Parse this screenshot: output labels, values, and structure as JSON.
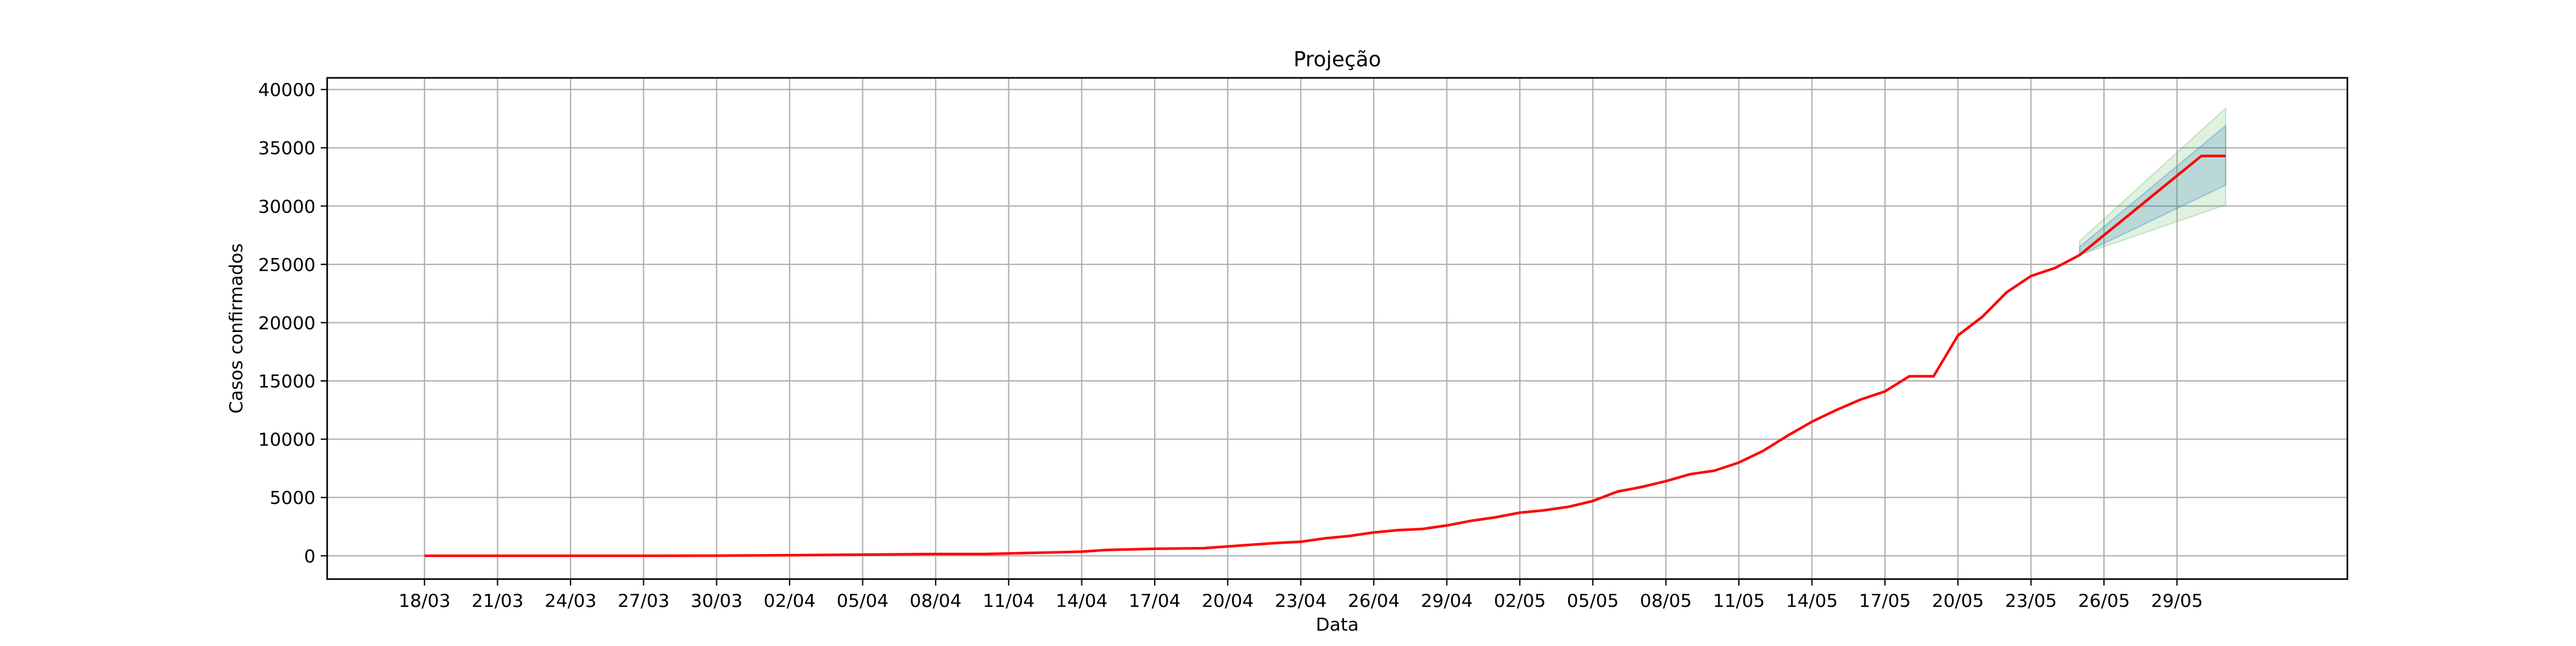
{
  "chart_data": {
    "type": "line",
    "title": "Projeção",
    "xlabel": "Data",
    "ylabel": "Casos confirmados",
    "ylim": [
      -2000,
      41000
    ],
    "yticks": [
      0,
      5000,
      10000,
      15000,
      20000,
      25000,
      30000,
      35000,
      40000
    ],
    "grid": true,
    "x_range": [
      "2020-03-14",
      "2020-06-05"
    ],
    "xtick_labels": [
      "18/03",
      "21/03",
      "24/03",
      "27/03",
      "30/03",
      "02/04",
      "05/04",
      "08/04",
      "11/04",
      "14/04",
      "17/04",
      "20/04",
      "23/04",
      "26/04",
      "29/04",
      "02/05",
      "05/05",
      "08/05",
      "11/05",
      "14/05",
      "17/05",
      "20/05",
      "23/05",
      "26/05",
      "29/05"
    ],
    "xtick_dates": [
      "2020-03-18",
      "2020-03-21",
      "2020-03-24",
      "2020-03-27",
      "2020-03-30",
      "2020-04-02",
      "2020-04-05",
      "2020-04-08",
      "2020-04-11",
      "2020-04-14",
      "2020-04-17",
      "2020-04-20",
      "2020-04-23",
      "2020-04-26",
      "2020-04-29",
      "2020-05-02",
      "2020-05-05",
      "2020-05-08",
      "2020-05-11",
      "2020-05-14",
      "2020-05-17",
      "2020-05-20",
      "2020-05-23",
      "2020-05-26",
      "2020-05-29"
    ],
    "series": [
      {
        "color": "#ff0000",
        "x": [
          "2020-03-18",
          "2020-03-21",
          "2020-03-24",
          "2020-03-27",
          "2020-03-30",
          "2020-04-02",
          "2020-04-05",
          "2020-04-08",
          "2020-04-10",
          "2020-04-11",
          "2020-04-14",
          "2020-04-15",
          "2020-04-17",
          "2020-04-19",
          "2020-04-20",
          "2020-04-22",
          "2020-04-23",
          "2020-04-24",
          "2020-04-25",
          "2020-04-26",
          "2020-04-27",
          "2020-04-28",
          "2020-04-29",
          "2020-04-30",
          "2020-05-01",
          "2020-05-02",
          "2020-05-03",
          "2020-05-04",
          "2020-05-05",
          "2020-05-06",
          "2020-05-07",
          "2020-05-08",
          "2020-05-09",
          "2020-05-10",
          "2020-05-11",
          "2020-05-12",
          "2020-05-13",
          "2020-05-14",
          "2020-05-15",
          "2020-05-16",
          "2020-05-17",
          "2020-05-18",
          "2020-05-19",
          "2020-05-20",
          "2020-05-21",
          "2020-05-22",
          "2020-05-23",
          "2020-05-24",
          "2020-05-25",
          "2020-05-26",
          "2020-05-27",
          "2020-05-28",
          "2020-05-29",
          "2020-05-30",
          "2020-05-31"
        ],
        "y": [
          0,
          0,
          0,
          0,
          10,
          50,
          100,
          150,
          150,
          200,
          350,
          500,
          600,
          650,
          800,
          1100,
          1200,
          1500,
          1700,
          2000,
          2200,
          2300,
          2600,
          3000,
          3300,
          3700,
          3900,
          4200,
          4700,
          5500,
          5900,
          6400,
          7000,
          7300,
          8000,
          9000,
          10300,
          11500,
          12500,
          13400,
          14100,
          15400,
          15400,
          18900,
          20500,
          22600,
          24000,
          24700,
          25800,
          27500,
          29200,
          30900,
          32600,
          34300,
          34300
        ]
      }
    ],
    "bands": [
      {
        "color": "#2ca02c",
        "opacity": 0.15,
        "x": [
          "2020-05-25",
          "2020-05-31"
        ],
        "lower": [
          25800,
          30100
        ],
        "upper": [
          27000,
          38400
        ]
      },
      {
        "color": "#1f77b4",
        "opacity": 0.2,
        "x": [
          "2020-05-25",
          "2020-05-31"
        ],
        "lower": [
          25800,
          31800
        ],
        "upper": [
          26500,
          36900
        ]
      }
    ]
  }
}
